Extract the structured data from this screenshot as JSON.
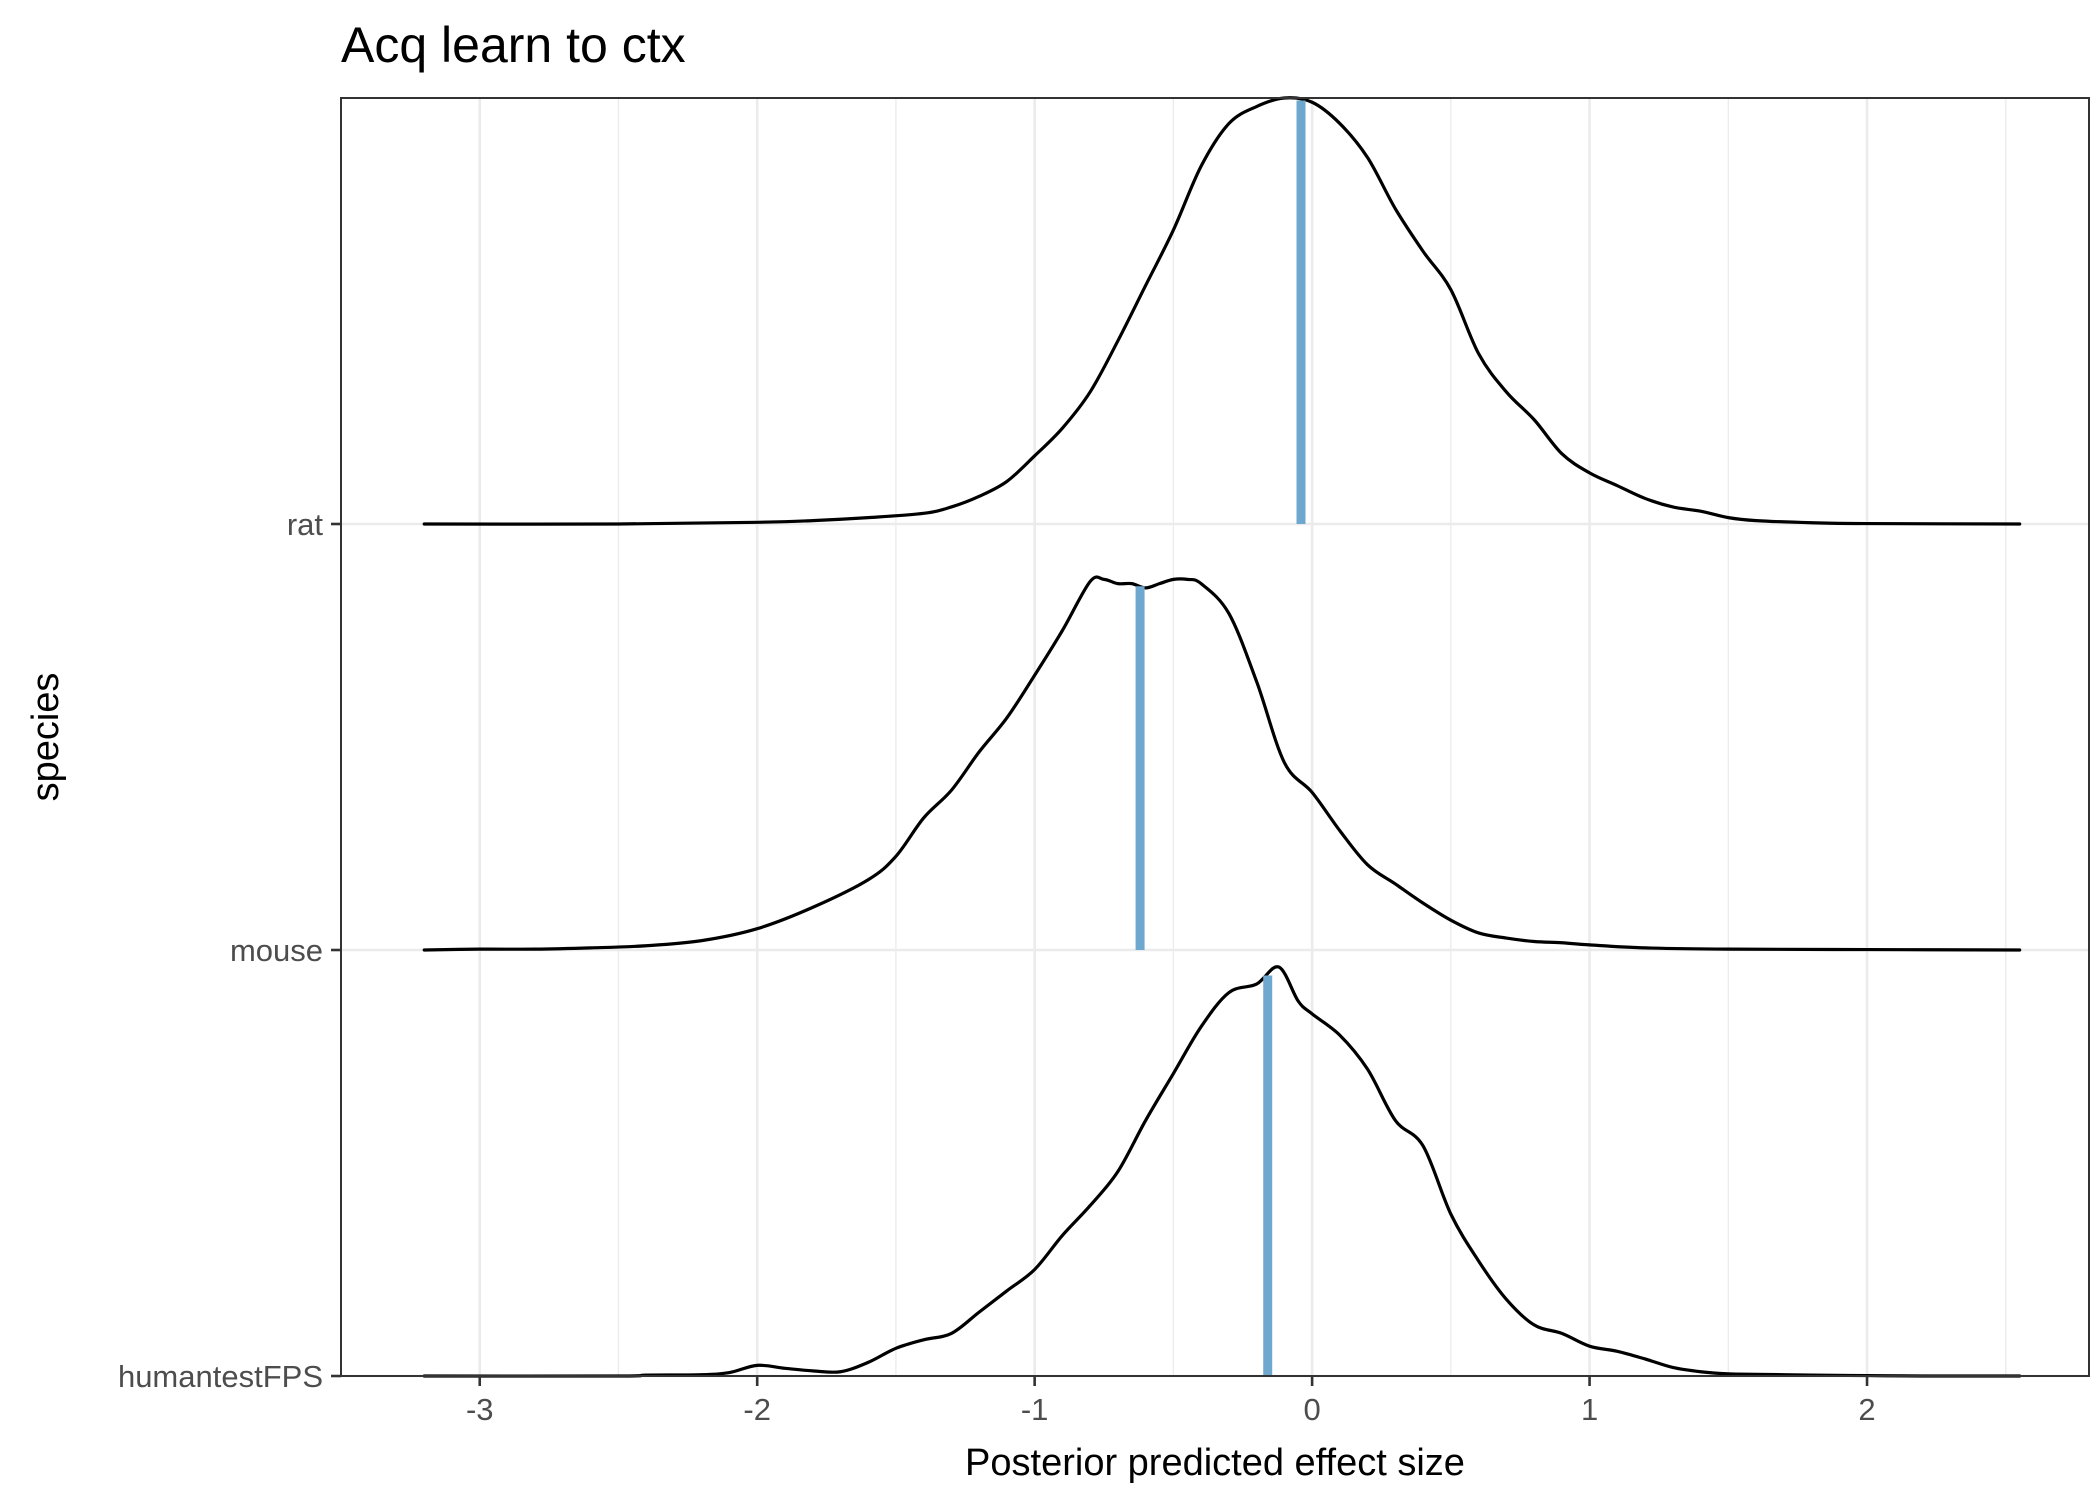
{
  "chart_data": {
    "type": "ridgeline-density",
    "title": "Acq learn to ctx",
    "xlabel": "Posterior predicted effect size",
    "ylabel": "species",
    "xlim": [
      -3.5,
      2.8
    ],
    "x_ticks": [
      -3,
      -2,
      -1,
      0,
      1,
      2
    ],
    "x_tick_labels": [
      "-3",
      "-2",
      "-1",
      "0",
      "1",
      "2"
    ],
    "grid": true,
    "background": "#ffffff",
    "grid_color": "#ebebeb",
    "curve_color": "#000000",
    "marker_color": "#6fa8cf",
    "categories": [
      "humantestFPS",
      "mouse",
      "rat"
    ],
    "series": [
      {
        "name": "humantestFPS",
        "marker": -0.16,
        "density": [
          [
            -3.2,
            0.0
          ],
          [
            -2.5,
            0.0
          ],
          [
            -2.4,
            0.002
          ],
          [
            -2.2,
            0.003
          ],
          [
            -2.1,
            0.008
          ],
          [
            -2.0,
            0.025
          ],
          [
            -1.9,
            0.018
          ],
          [
            -1.8,
            0.012
          ],
          [
            -1.7,
            0.01
          ],
          [
            -1.6,
            0.032
          ],
          [
            -1.5,
            0.065
          ],
          [
            -1.4,
            0.085
          ],
          [
            -1.3,
            0.1
          ],
          [
            -1.2,
            0.15
          ],
          [
            -1.1,
            0.2
          ],
          [
            -1.0,
            0.25
          ],
          [
            -0.9,
            0.33
          ],
          [
            -0.8,
            0.4
          ],
          [
            -0.7,
            0.48
          ],
          [
            -0.6,
            0.6
          ],
          [
            -0.5,
            0.71
          ],
          [
            -0.4,
            0.82
          ],
          [
            -0.3,
            0.9
          ],
          [
            -0.2,
            0.92
          ],
          [
            -0.12,
            0.96
          ],
          [
            -0.05,
            0.88
          ],
          [
            0.0,
            0.85
          ],
          [
            0.1,
            0.8
          ],
          [
            0.2,
            0.72
          ],
          [
            0.3,
            0.6
          ],
          [
            0.4,
            0.54
          ],
          [
            0.5,
            0.38
          ],
          [
            0.6,
            0.27
          ],
          [
            0.7,
            0.18
          ],
          [
            0.8,
            0.12
          ],
          [
            0.9,
            0.1
          ],
          [
            1.0,
            0.07
          ],
          [
            1.1,
            0.058
          ],
          [
            1.2,
            0.04
          ],
          [
            1.3,
            0.02
          ],
          [
            1.4,
            0.01
          ],
          [
            1.5,
            0.005
          ],
          [
            1.6,
            0.004
          ],
          [
            1.7,
            0.003
          ],
          [
            1.8,
            0.002
          ],
          [
            2.0,
            0.001
          ],
          [
            2.2,
            0.0
          ],
          [
            2.55,
            0.0
          ]
        ]
      },
      {
        "name": "mouse",
        "marker": -0.62,
        "density": [
          [
            -3.2,
            0.0
          ],
          [
            -3.0,
            0.002
          ],
          [
            -2.8,
            0.002
          ],
          [
            -2.6,
            0.005
          ],
          [
            -2.4,
            0.01
          ],
          [
            -2.2,
            0.022
          ],
          [
            -2.0,
            0.05
          ],
          [
            -1.8,
            0.1
          ],
          [
            -1.6,
            0.165
          ],
          [
            -1.5,
            0.22
          ],
          [
            -1.4,
            0.31
          ],
          [
            -1.3,
            0.375
          ],
          [
            -1.2,
            0.465
          ],
          [
            -1.1,
            0.545
          ],
          [
            -1.0,
            0.645
          ],
          [
            -0.9,
            0.75
          ],
          [
            -0.8,
            0.865
          ],
          [
            -0.75,
            0.87
          ],
          [
            -0.7,
            0.86
          ],
          [
            -0.65,
            0.86
          ],
          [
            -0.6,
            0.85
          ],
          [
            -0.55,
            0.86
          ],
          [
            -0.5,
            0.87
          ],
          [
            -0.45,
            0.87
          ],
          [
            -0.4,
            0.86
          ],
          [
            -0.3,
            0.79
          ],
          [
            -0.2,
            0.63
          ],
          [
            -0.1,
            0.44
          ],
          [
            0.0,
            0.37
          ],
          [
            0.1,
            0.28
          ],
          [
            0.2,
            0.2
          ],
          [
            0.3,
            0.155
          ],
          [
            0.4,
            0.11
          ],
          [
            0.5,
            0.07
          ],
          [
            0.6,
            0.04
          ],
          [
            0.7,
            0.028
          ],
          [
            0.8,
            0.02
          ],
          [
            0.9,
            0.017
          ],
          [
            1.0,
            0.012
          ],
          [
            1.2,
            0.005
          ],
          [
            1.5,
            0.002
          ],
          [
            2.0,
            0.001
          ],
          [
            2.55,
            0.0
          ]
        ]
      },
      {
        "name": "rat",
        "marker": -0.04,
        "density": [
          [
            -3.2,
            0.0
          ],
          [
            -2.5,
            0.0
          ],
          [
            -2.0,
            0.004
          ],
          [
            -1.8,
            0.008
          ],
          [
            -1.6,
            0.015
          ],
          [
            -1.4,
            0.025
          ],
          [
            -1.3,
            0.04
          ],
          [
            -1.2,
            0.065
          ],
          [
            -1.1,
            0.1
          ],
          [
            -1.0,
            0.16
          ],
          [
            -0.9,
            0.225
          ],
          [
            -0.8,
            0.31
          ],
          [
            -0.7,
            0.43
          ],
          [
            -0.6,
            0.56
          ],
          [
            -0.5,
            0.69
          ],
          [
            -0.4,
            0.84
          ],
          [
            -0.3,
            0.94
          ],
          [
            -0.2,
            0.98
          ],
          [
            -0.1,
            1.0
          ],
          [
            0.0,
            0.99
          ],
          [
            0.1,
            0.94
          ],
          [
            0.2,
            0.86
          ],
          [
            0.3,
            0.74
          ],
          [
            0.4,
            0.64
          ],
          [
            0.5,
            0.55
          ],
          [
            0.6,
            0.4
          ],
          [
            0.7,
            0.31
          ],
          [
            0.8,
            0.245
          ],
          [
            0.9,
            0.165
          ],
          [
            1.0,
            0.12
          ],
          [
            1.1,
            0.09
          ],
          [
            1.2,
            0.06
          ],
          [
            1.3,
            0.04
          ],
          [
            1.4,
            0.03
          ],
          [
            1.5,
            0.015
          ],
          [
            1.6,
            0.008
          ],
          [
            1.8,
            0.003
          ],
          [
            2.0,
            0.001
          ],
          [
            2.55,
            0.0
          ]
        ]
      }
    ]
  }
}
